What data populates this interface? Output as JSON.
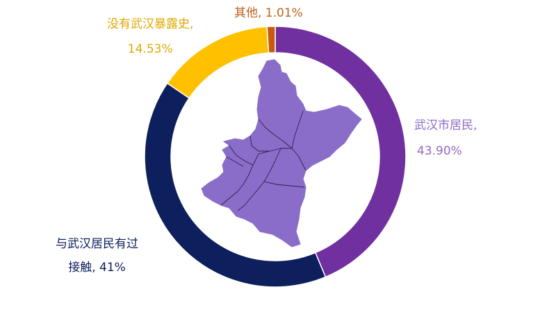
{
  "chart_data": {
    "type": "pie",
    "slices": [
      {
        "label_line1": "武汉市居民,",
        "label_line2": "43.90%",
        "value": 43.9,
        "color": "#7030a0",
        "label_color": "#8e6ac8"
      },
      {
        "label_line1": "与武汉居民有过",
        "label_line2": "接触, 41%",
        "value": 41.0,
        "color": "#0d1f5c",
        "label_color": "#0d1f5c"
      },
      {
        "label_line1": "没有武汉暴露史,",
        "label_line2": "14.53%",
        "value": 14.53,
        "color": "#ffc000",
        "label_color": "#e0a800"
      },
      {
        "label_line1": "其他, 1.01%",
        "label_line2": "",
        "value": 1.01,
        "color": "#c55a11",
        "label_color": "#c0611a"
      }
    ],
    "donut": true,
    "center_image": "wuhan-map",
    "map_color": "#8a6dc9",
    "map_border_color": "#2b1f4a"
  }
}
